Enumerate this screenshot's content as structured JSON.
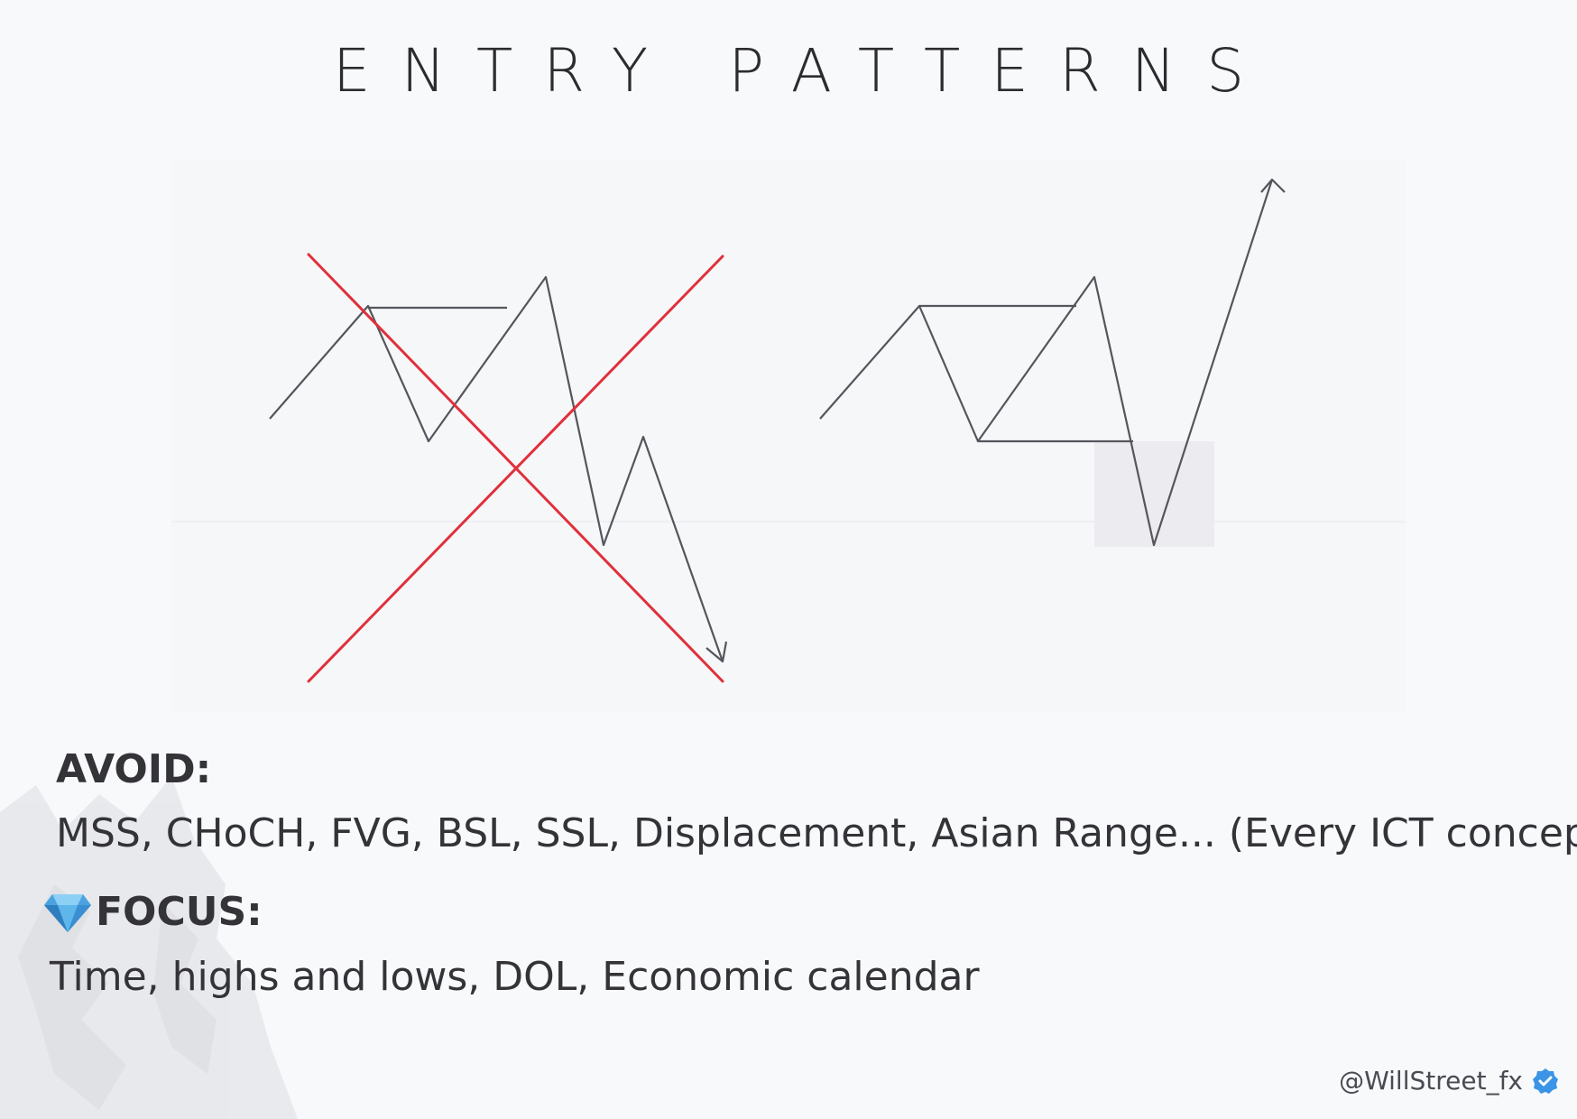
{
  "title": "ENTRY PATTERNS",
  "avoid": {
    "heading": "AVOID:",
    "text": "MSS, CHoCH, FVG, BSL, SSL, Displacement, Asian Range... (Every ICT concept)"
  },
  "focus": {
    "icon": "gem-icon",
    "heading": "FOCUS:",
    "text": "Time, highs and lows, DOL, Economic calendar"
  },
  "footer": {
    "handle": "@WillStreet_fx",
    "verified_icon": "verified-check-icon"
  },
  "colors": {
    "line": "#55555d",
    "cross": "#e0303c",
    "highlight_box": "#ececf0",
    "verified": "#3b94e6"
  }
}
